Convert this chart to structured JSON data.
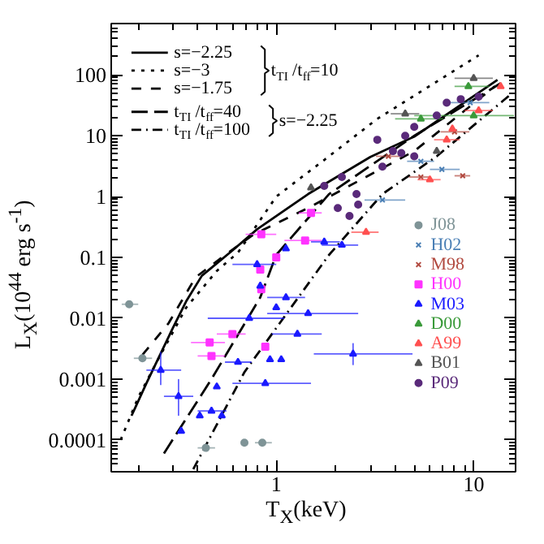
{
  "chart_data": {
    "type": "scatter",
    "xlabel": "T$_{X}$(keV)",
    "ylabel": "L$_{X}$(10$^{44}$ erg s$^{-1}$)",
    "log": "xy",
    "xlim": [
      0.146,
      16.3
    ],
    "ylim": [
      3e-05,
      700
    ],
    "xticks": [
      1,
      10
    ],
    "yticks": [
      0.0001,
      0.001,
      0.01,
      0.1,
      1,
      10,
      100
    ],
    "grid": false,
    "legend": "top left",
    "annotations": [
      "t$_{TI}$/t$_{ff}$=10",
      "s=−2.25"
    ],
    "series": [
      {
        "name": "s=−2.25",
        "type": "line",
        "line_style": "solid",
        "color": "#000000",
        "x": [
          0.185,
          0.22,
          0.3,
          0.35,
          0.42,
          0.5,
          0.6,
          0.8,
          1.45,
          3,
          5,
          13.2
        ],
        "values": [
          0.00025,
          0.00085,
          0.007,
          0.019,
          0.05,
          0.08,
          0.13,
          0.29,
          1.1,
          4.5,
          9.7,
          83
        ]
      },
      {
        "name": "s=−3",
        "type": "line",
        "line_style": "dotted",
        "color": "#000000",
        "x": [
          0.163,
          0.2,
          0.25,
          0.35,
          0.5,
          0.64,
          1,
          1.85,
          3.25,
          10.6
        ],
        "values": [
          0.0001,
          0.0005,
          0.002,
          0.015,
          0.06,
          0.12,
          1.0,
          4.6,
          19,
          210
        ]
      },
      {
        "name": "s=−1.75",
        "type": "line",
        "line_style": "dashed",
        "color": "#000000",
        "x": [
          0.21,
          0.285,
          0.39,
          0.53,
          0.77,
          1.45,
          5,
          12.8
        ],
        "values": [
          0.0025,
          0.0083,
          0.047,
          0.1,
          0.24,
          0.65,
          5.6,
          65
        ]
      },
      {
        "name": "t$_{TI}$/t$_{ff}$=40",
        "type": "line",
        "line_style": "longdash",
        "color": "#000000",
        "x": [
          0.27,
          0.47,
          0.83,
          1,
          1.85,
          5,
          13.7
        ],
        "values": [
          6e-05,
          0.001,
          0.022,
          0.11,
          1.1,
          10,
          73
        ]
      },
      {
        "name": "t$_{TI}$/t$_{ff}$=100",
        "type": "line",
        "line_style": "dashdot",
        "color": "#000000",
        "x": [
          0.38,
          0.69,
          1.85,
          3.45,
          6.5,
          15.4
        ],
        "values": [
          3.3e-05,
          0.0013,
          0.11,
          1.1,
          4.6,
          48
        ]
      },
      {
        "name": "J08",
        "type": "scatter",
        "marker": "circle",
        "color": "#7f9497",
        "x": [
          0.18,
          0.21,
          0.44,
          0.69,
          0.85
        ],
        "values": [
          0.017,
          0.0022,
          7.4e-05,
          9e-05,
          9e-05
        ],
        "xerrors": [
          [
            0.165,
            0.2
          ],
          [
            0.19,
            0.235
          ],
          [
            0.4,
            0.49
          ],
          null,
          [
            0.78,
            0.95
          ]
        ]
      },
      {
        "name": "H02",
        "type": "scatter",
        "marker": "cross",
        "color": "#4a7fb5",
        "x": [
          3.45,
          6.9,
          5.4,
          9.6
        ],
        "values": [
          0.88,
          2.8,
          3.8,
          35
        ],
        "xerrors": [
          [
            2.8,
            4.5
          ],
          [
            6,
            8.5
          ],
          [
            4.6,
            6.3
          ],
          [
            7.5,
            12
          ]
        ]
      },
      {
        "name": "M98",
        "type": "scatter",
        "marker": "cross",
        "color": "#b24a40",
        "x": [
          5.4,
          8.8,
          8,
          3.7
        ],
        "values": [
          2.1,
          2.2,
          11.6,
          4.6
        ],
        "xerrors": [
          [
            4.7,
            6
          ],
          [
            8,
            9.6
          ],
          [
            6.8,
            9.5
          ],
          [
            3.2,
            4.3
          ]
        ]
      },
      {
        "name": "H00",
        "type": "scatter",
        "marker": "square",
        "color": "#ff33ff",
        "x": [
          0.84,
          1.5,
          1.4,
          1,
          0.83,
          0.46,
          0.47,
          0.88,
          0.6,
          0.84
        ],
        "values": [
          0.24,
          0.54,
          0.19,
          0.1,
          0.063,
          0.004,
          0.0024,
          0.0034,
          0.0055,
          0.03
        ],
        "xerrors": [
          [
            0.7,
            1
          ],
          [
            1.3,
            1.7
          ],
          [
            1.1,
            1.7
          ],
          null,
          null,
          [
            0.37,
            0.55
          ],
          [
            0.4,
            0.55
          ],
          null,
          [
            0.5,
            0.7
          ],
          null
        ]
      },
      {
        "name": "M03",
        "type": "scatter",
        "marker": "triangle",
        "color": "#1a1aff",
        "x": [
          0.26,
          0.32,
          0.33,
          0.47,
          0.5,
          0.64,
          0.73,
          0.88,
          0.93,
          1.0,
          1.12,
          1.28,
          1.06,
          1.45,
          2.45,
          0.83,
          1.12,
          1.75,
          2.15,
          0.8,
          0.53,
          0.41
        ],
        "values": [
          0.0014,
          0.00052,
          0.00014,
          0.0003,
          0.00075,
          0.0019,
          0.01,
          0.00085,
          0.0021,
          0.015,
          0.022,
          0.0055,
          0.0021,
          0.012,
          0.0026,
          0.034,
          0.14,
          0.18,
          0.16,
          0.077,
          0.00025,
          0.00025
        ],
        "xerrors": [
          [
            0.22,
            0.33
          ],
          [
            0.27,
            0.38
          ],
          null,
          [
            0.4,
            0.56
          ],
          null,
          [
            0.55,
            0.75
          ],
          [
            0.45,
            1.1
          ],
          [
            0.6,
            1.5
          ],
          null,
          null,
          [
            0.9,
            1.4
          ],
          [
            0.95,
            1.7
          ],
          null,
          [
            0.9,
            2.6
          ],
          [
            1.55,
            4.9
          ],
          null,
          null,
          [
            1.5,
            2.1
          ],
          [
            1.7,
            2.6
          ],
          [
            0.6,
            1
          ],
          null,
          null
        ],
        "errors": [
          [
            0.0008,
            0.0028
          ],
          [
            0.00025,
            0.001
          ],
          null,
          null,
          null,
          null,
          null,
          null,
          null,
          null,
          null,
          null,
          null,
          null,
          [
            0.0017,
            0.0039
          ],
          null,
          null,
          null,
          null,
          null,
          null,
          null
        ]
      },
      {
        "name": "D00",
        "type": "scatter",
        "marker": "triangle",
        "color": "#3a9a3a",
        "x": [
          5.4,
          10,
          9.4
        ],
        "values": [
          19,
          21.5,
          65
        ],
        "xerrors": [
          [
            4,
            7
          ],
          [
            5,
            16
          ],
          [
            8,
            12
          ]
        ]
      },
      {
        "name": "A99",
        "type": "scatter",
        "marker": "triangle",
        "color": "#ff5050",
        "x": [
          2.85,
          6,
          7.8,
          10.6,
          13.7,
          7.3
        ],
        "values": [
          0.26,
          1.9,
          13,
          26,
          65,
          8.6
        ],
        "xerrors": [
          [
            2.4,
            3.3
          ],
          [
            5.2,
            6.8
          ],
          null,
          [
            9,
            12.5
          ],
          null,
          [
            6.3,
            8.5
          ]
        ]
      },
      {
        "name": "B01",
        "type": "scatter",
        "marker": "triangle",
        "color": "#555555",
        "x": [
          10,
          4.5,
          1.5,
          6.5
        ],
        "values": [
          88,
          23,
          1.4,
          5.6
        ],
        "xerrors": [
          [
            8,
            12.5
          ],
          [
            3.8,
            5.3
          ],
          null,
          null
        ]
      },
      {
        "name": "P09",
        "type": "scatter",
        "marker": "circle",
        "color": "#5a2a7a",
        "x": [
          3.25,
          2.15,
          2.55,
          2.6,
          3.9,
          4.5,
          5,
          6.5,
          7.3,
          8.6,
          10.6,
          3.45,
          4.3,
          2.05,
          2.35,
          1.75,
          5
        ],
        "values": [
          8.6,
          2.1,
          1.1,
          0.74,
          5.6,
          10,
          14,
          21.5,
          35,
          40,
          44,
          3.1,
          5.2,
          0.65,
          0.48,
          1.5,
          4.6
        ]
      }
    ]
  }
}
